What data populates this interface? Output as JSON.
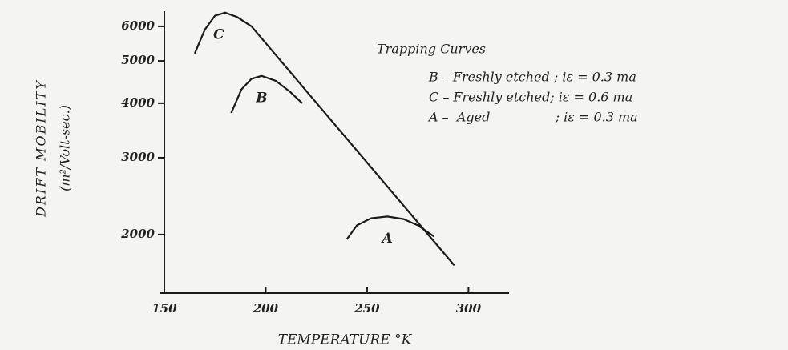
{
  "chart_data": {
    "type": "line",
    "x_label": "TEMPERATURE °K",
    "y_label": "DRIFT MOBILITY",
    "y_label_units": "(m²/Volt-sec.)",
    "legend_title": "Trapping Curves",
    "legend_lines": [
      "B – Freshly etched ; iε = 0.3 ma",
      "C – Freshly etched; iε = 0.6 ma",
      "A –  Aged                ; iε = 0.3 ma"
    ],
    "log_y": true,
    "xlim": [
      150,
      320
    ],
    "ylim": [
      1500,
      6500
    ],
    "xticks": [
      150,
      200,
      250,
      300
    ],
    "yticks": [
      2000,
      3000,
      4000,
      5000,
      6000
    ],
    "color": "#1a1a1a",
    "envelope": {
      "x": [
        193,
        293
      ],
      "values": [
        6000,
        1700
      ]
    },
    "series": [
      {
        "name": "C",
        "x": [
          165,
          170,
          175,
          180,
          186,
          193
        ],
        "values": [
          5200,
          5900,
          6350,
          6450,
          6300,
          6000
        ]
      },
      {
        "name": "B",
        "x": [
          183,
          188,
          193,
          198,
          205,
          212,
          218
        ],
        "values": [
          3800,
          4300,
          4550,
          4620,
          4500,
          4250,
          4000
        ]
      },
      {
        "name": "A",
        "x": [
          240,
          245,
          252,
          260,
          268,
          275,
          283
        ],
        "values": [
          1950,
          2100,
          2180,
          2200,
          2170,
          2100,
          1980
        ]
      }
    ]
  }
}
